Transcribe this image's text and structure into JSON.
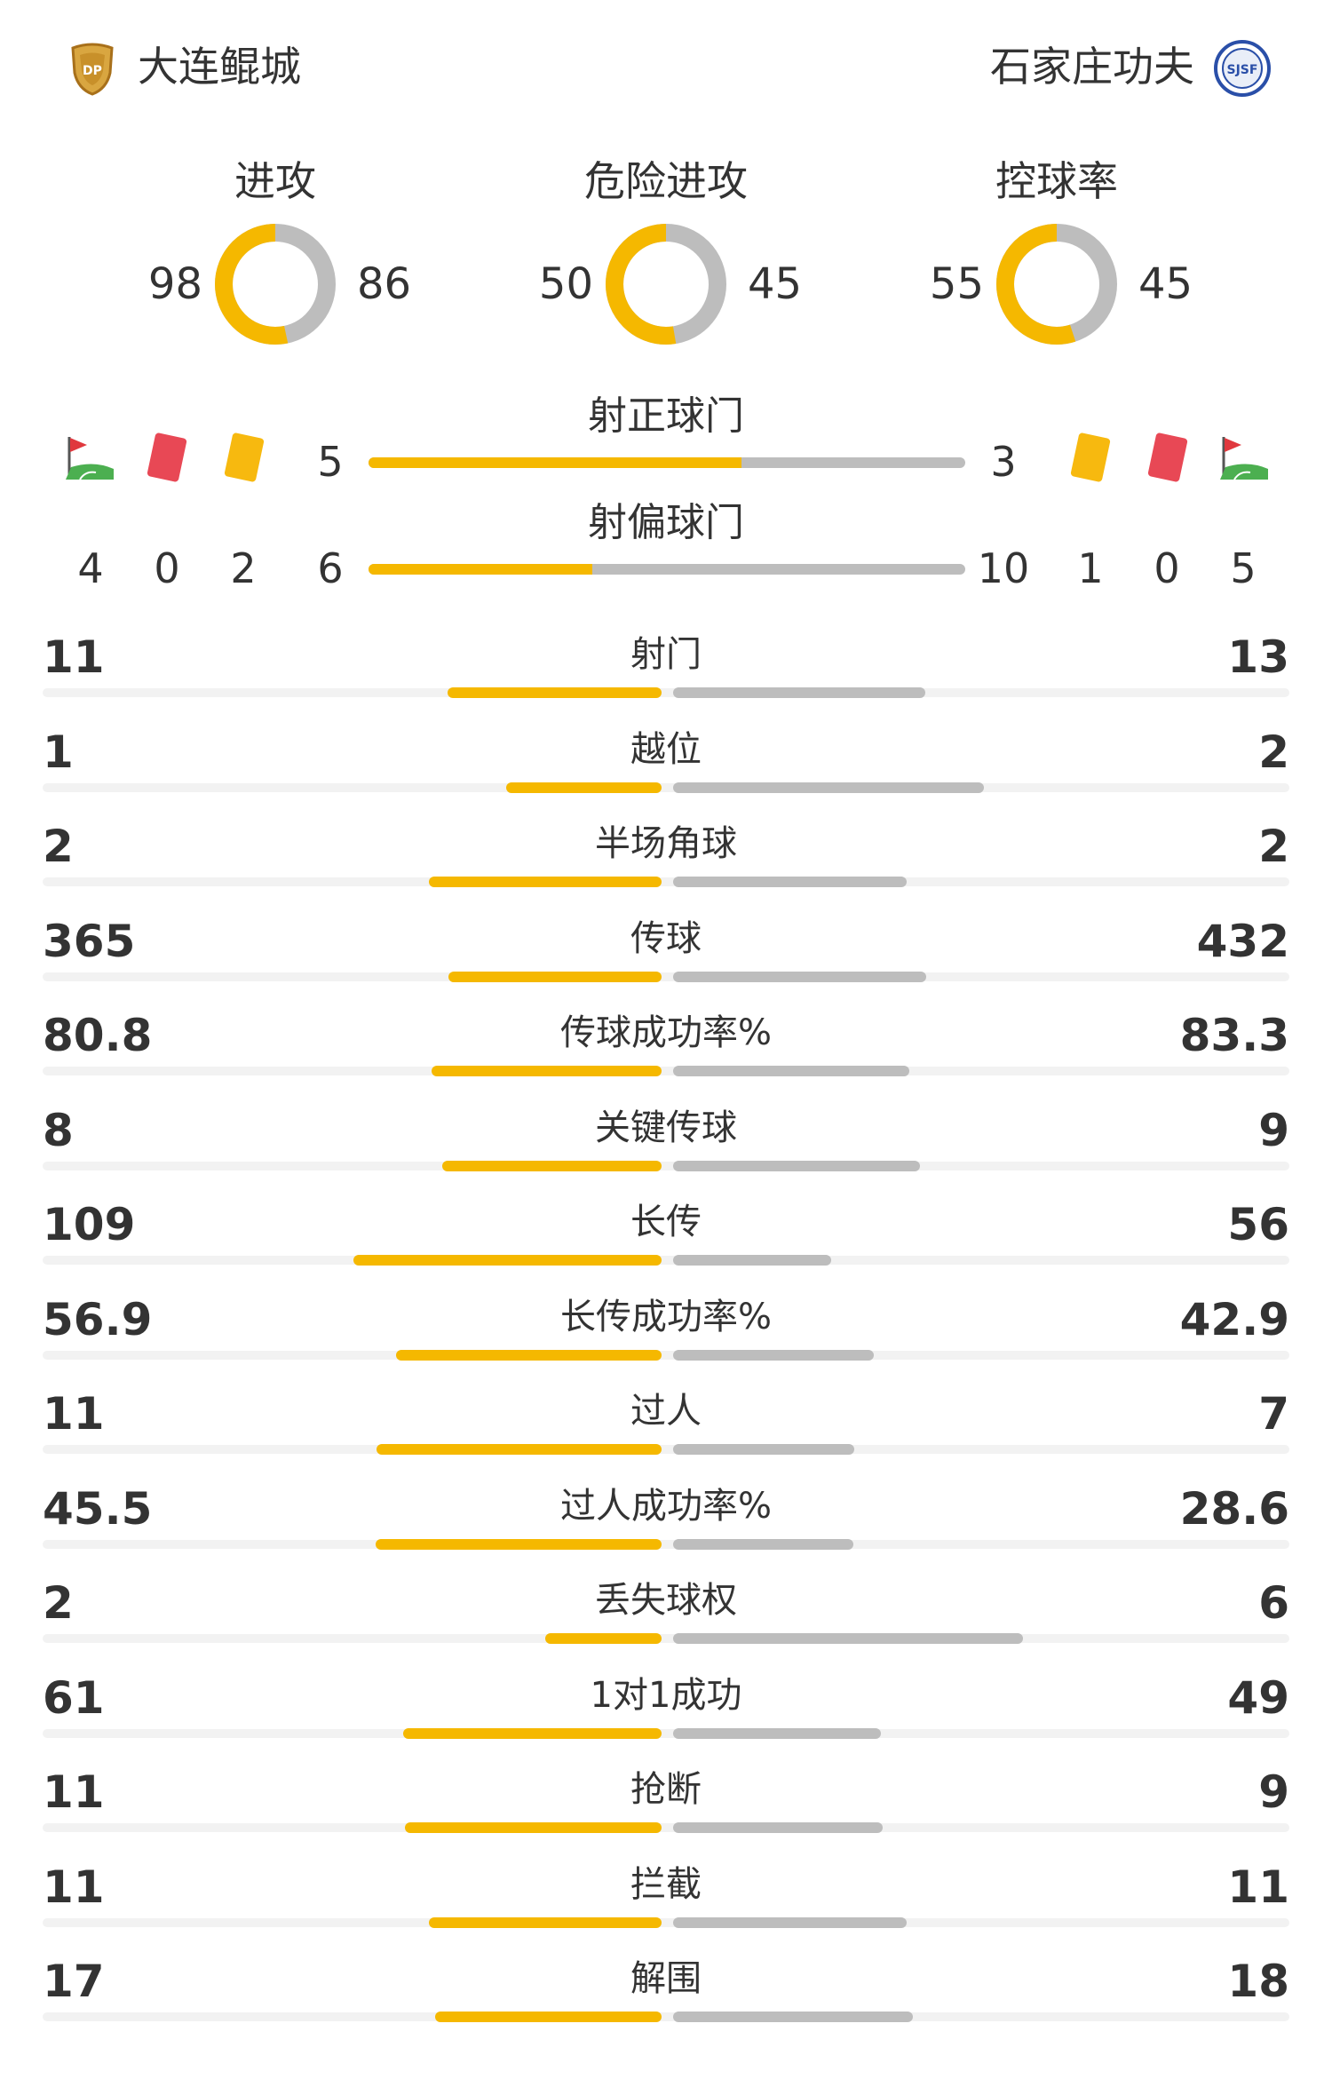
{
  "teams": {
    "home": {
      "name": "大连鲲城",
      "crest": "shield-crest-icon"
    },
    "away": {
      "name": "石家庄功夫",
      "crest": "round-crest-icon"
    }
  },
  "rings": [
    {
      "label": "进攻",
      "home": "98",
      "away": "86",
      "home_share": 0.533
    },
    {
      "label": "危险进攻",
      "home": "50",
      "away": "45",
      "home_share": 0.526
    },
    {
      "label": "控球率",
      "home": "55",
      "away": "45",
      "home_share": 0.55
    }
  ],
  "events": {
    "icons": [
      "corner-flag-icon",
      "red-card-icon",
      "yellow-card-icon"
    ],
    "home_counts": {
      "corners": "4",
      "red": "0",
      "yellow": "2"
    },
    "away_counts": {
      "yellow": "1",
      "red": "0",
      "corners": "5"
    }
  },
  "shots_on": {
    "label": "射正球门",
    "home": "5",
    "away": "3",
    "home_share": 0.625
  },
  "shots_off": {
    "label": "射偏球门",
    "home": "6",
    "away": "10",
    "home_share": 0.375
  },
  "stats": [
    {
      "label": "射门",
      "home": "11",
      "away": "13"
    },
    {
      "label": "越位",
      "home": "1",
      "away": "2"
    },
    {
      "label": "半场角球",
      "home": "2",
      "away": "2"
    },
    {
      "label": "传球",
      "home": "365",
      "away": "432"
    },
    {
      "label": "传球成功率%",
      "home": "80.8",
      "away": "83.3"
    },
    {
      "label": "关键传球",
      "home": "8",
      "away": "9"
    },
    {
      "label": "长传",
      "home": "109",
      "away": "56"
    },
    {
      "label": "长传成功率%",
      "home": "56.9",
      "away": "42.9"
    },
    {
      "label": "过人",
      "home": "11",
      "away": "7"
    },
    {
      "label": "过人成功率%",
      "home": "45.5",
      "away": "28.6"
    },
    {
      "label": "丢失球权",
      "home": "2",
      "away": "6"
    },
    {
      "label": "1对1成功",
      "home": "61",
      "away": "49"
    },
    {
      "label": "抢断",
      "home": "11",
      "away": "9"
    },
    {
      "label": "拦截",
      "home": "11",
      "away": "11"
    },
    {
      "label": "解围",
      "home": "17",
      "away": "18"
    }
  ],
  "colors": {
    "home": "#f5b800",
    "away": "#bdbdbd",
    "track": "#f2f2f2",
    "text": "#333333"
  }
}
